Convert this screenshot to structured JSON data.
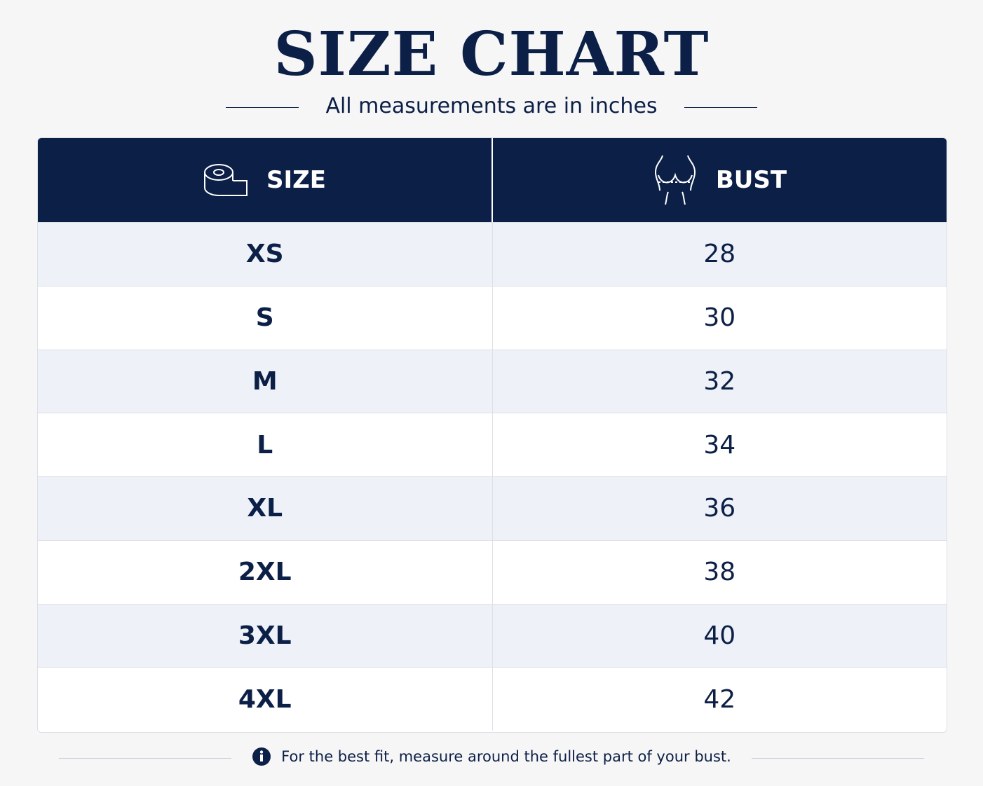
{
  "header": {
    "title": "SIZE CHART",
    "subtitle": "All measurements are in inches"
  },
  "table": {
    "columns": [
      "SIZE",
      "BUST"
    ],
    "rows": [
      [
        "XS",
        "28"
      ],
      [
        "S",
        "30"
      ],
      [
        "M",
        "32"
      ],
      [
        "L",
        "34"
      ],
      [
        "XL",
        "36"
      ],
      [
        "2XL",
        "38"
      ],
      [
        "3XL",
        "40"
      ],
      [
        "4XL",
        "42"
      ]
    ]
  },
  "footer": {
    "note": "For the best fit, measure around the fullest part of your bust."
  }
}
